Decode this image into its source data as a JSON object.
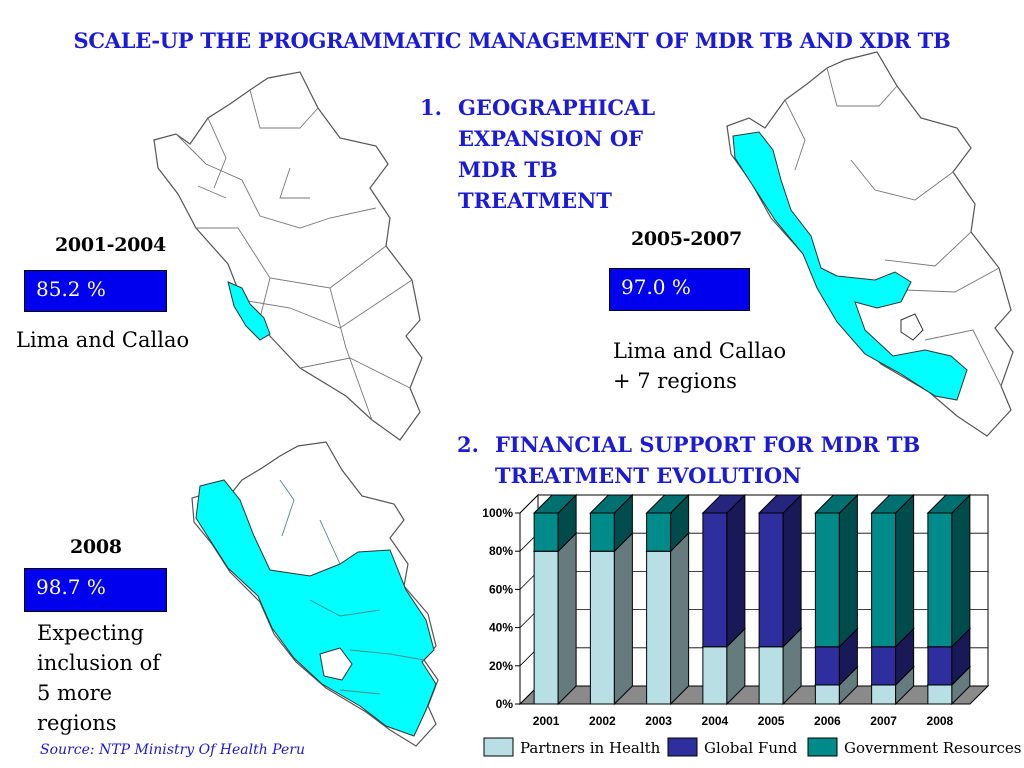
{
  "title": "SCALE-UP THE PROGRAMMATIC MANAGEMENT OF MDR TB AND XDR TB",
  "section1": {
    "num": "1.",
    "lines": [
      "GEOGRAPHICAL",
      "EXPANSION OF",
      "MDR TB",
      "TREATMENT"
    ]
  },
  "section2": {
    "num": "2.",
    "lines": [
      "FINANCIAL SUPPORT FOR MDR TB",
      "TREATMENT EVOLUTION"
    ]
  },
  "maps": [
    {
      "period": "2001-2004",
      "coverage": "85.2 %",
      "caption": [
        "Lima and Callao"
      ]
    },
    {
      "period": "2005-2007",
      "coverage": "97.0 %",
      "caption": [
        "Lima and Callao",
        "+ 7 regions"
      ]
    },
    {
      "period": "2008",
      "coverage": "98.7 %",
      "caption": [
        "Expecting",
        "inclusion of",
        "5 more",
        "regions"
      ]
    }
  ],
  "source": "Source: NTP Ministry Of Health  Peru",
  "colors": {
    "highlight": "#00ffff",
    "title_blue": "#1a1ad8",
    "box_blue": "#0000ee"
  },
  "chart_data": {
    "type": "bar",
    "stacked": true,
    "three_d": true,
    "categories": [
      "2001",
      "2002",
      "2003",
      "2004",
      "2005",
      "2006",
      "2007",
      "2008"
    ],
    "series": [
      {
        "name": "Partners in Health",
        "color": "#b8e0e4",
        "values": [
          80,
          80,
          80,
          30,
          30,
          10,
          10,
          10
        ]
      },
      {
        "name": "Global Fund",
        "color": "#2e2e9e",
        "values": [
          0,
          0,
          0,
          70,
          70,
          20,
          20,
          20
        ]
      },
      {
        "name": "Government Resources",
        "color": "#008b8b",
        "values": [
          20,
          20,
          20,
          0,
          0,
          70,
          70,
          70
        ]
      }
    ],
    "yticks": [
      "0%",
      "20%",
      "40%",
      "60%",
      "80%",
      "100%"
    ],
    "ylim": [
      0,
      100
    ],
    "legend_position": "bottom"
  }
}
